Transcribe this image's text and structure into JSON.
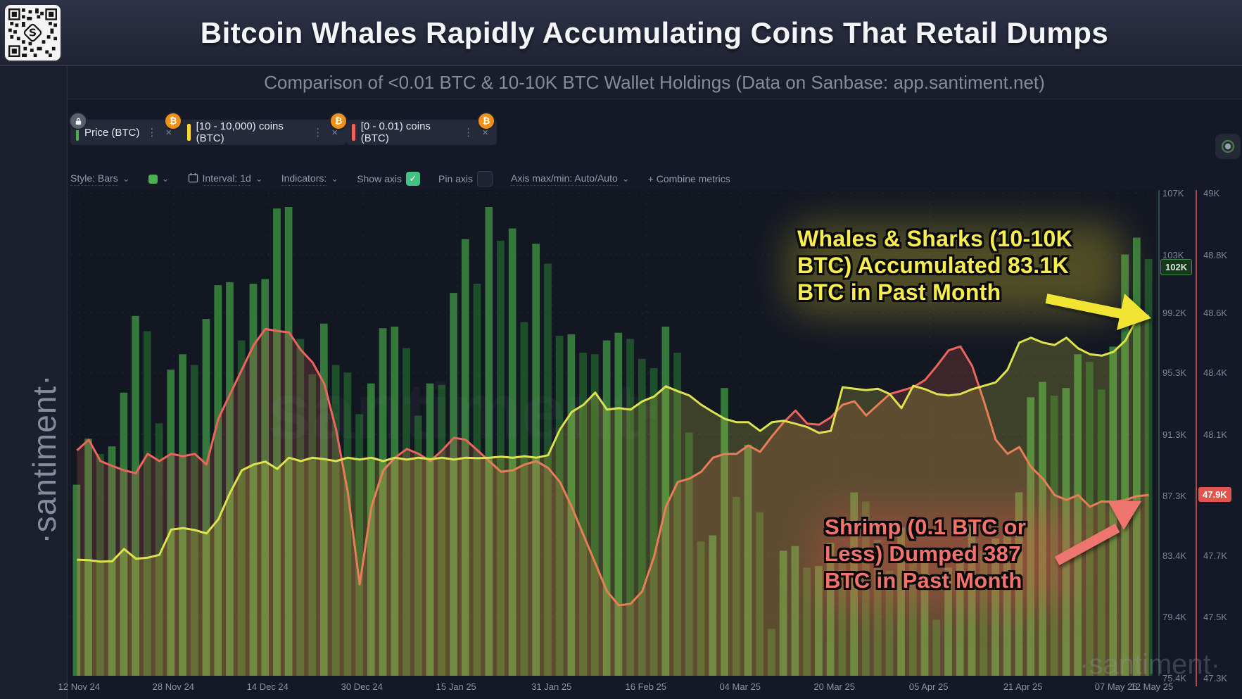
{
  "header": {
    "title": "Bitcoin Whales Rapidly Accumulating Coins That Retail Dumps",
    "subtitle": "Comparison of <0.01 BTC & 10-10K BTC Wallet Holdings (Data on Sanbase: app.santiment.net)"
  },
  "branding": {
    "sidebar_watermark": "·santiment·",
    "center_watermark": "santiment·",
    "corner_watermark": "·santiment·",
    "qr_icon": "qr-code-santiment"
  },
  "metric_tabs": [
    {
      "label": "Price (BTC)",
      "color": "#4caf50",
      "lock_icon": "lock-icon",
      "asset_badge": "₿",
      "menu": "⋮",
      "close": "×"
    },
    {
      "label": "[10 - 10,000) coins (BTC)",
      "color": "#ffd836",
      "asset_badge": "₿",
      "menu": "⋮",
      "close": "×"
    },
    {
      "label": "[0 - 0.01) coins (BTC)",
      "color": "#f0635a",
      "asset_badge": "₿",
      "menu": "⋮",
      "close": "×"
    }
  ],
  "toolbar": {
    "style_label": "Style: Bars",
    "swatch_color": "#4caf50",
    "interval_label": "Interval: 1d",
    "indicators_label": "Indicators:",
    "show_axis_label": "Show axis",
    "show_axis_checked": true,
    "show_axis_check": "✓",
    "pin_axis_label": "Pin axis",
    "pin_axis_checked": false,
    "axis_maxmin_label": "Axis max/min: Auto/Auto",
    "combine_label": "+  Combine metrics",
    "caret": "⌄"
  },
  "annotations": {
    "whales": {
      "text": "Whales & Sharks (10-10K\nBTC) Accumulated 83.1K\nBTC in Past Month",
      "color": "#f8ed4e"
    },
    "shrimp": {
      "text": "Shrimp (0.1 BTC or\nLess) Dumped 387\nBTC in Past Month",
      "color": "#f3736c"
    }
  },
  "axes": {
    "price_axis": {
      "ticks": [
        "107K",
        "103K",
        "99.2K",
        "95.3K",
        "91.3K",
        "87.3K",
        "83.4K",
        "79.4K",
        "75.4K"
      ],
      "current_badge": {
        "label": "102K",
        "bg": "#17371f",
        "fg": "#d2ecd6"
      }
    },
    "secondary_axis": {
      "ticks": [
        "49K",
        "48.8K",
        "48.6K",
        "48.4K",
        "48.1K",
        "47.7K",
        "47.5K",
        "47.3K"
      ],
      "tick_rows": [
        0,
        1,
        2,
        3,
        4,
        6,
        7,
        8
      ],
      "current_badge": {
        "label": "47.9K",
        "bg": "#e4544e",
        "fg": "#ffffff"
      },
      "axis_color": "#cc524c"
    },
    "x_axis": {
      "labels": [
        "12 Nov 24",
        "28 Nov 24",
        "14 Dec 24",
        "30 Dec 24",
        "15 Jan 25",
        "31 Jan 25",
        "16 Feb 25",
        "04 Mar 25",
        "20 Mar 25",
        "05 Apr 25",
        "21 Apr 25",
        "07 May 25",
        "12 May 25"
      ]
    }
  },
  "chart_data": {
    "type": "bar",
    "note": "Price rendered as daily green bars on left axis (K USD); the two wallet-holdings metrics are lines on hidden axes, values given as percent of plot height (0 = bottom, 100 = top).",
    "x_start": "12 Nov 24",
    "x_end": "12 May 25",
    "left_axis_range": [
      75.4,
      107
    ],
    "left_axis_values": [
      107,
      103,
      99.2,
      95.3,
      91.3,
      87.3,
      83.4,
      79.4,
      75.4
    ],
    "secondary_axis_range": [
      47.3,
      49
    ],
    "grid": true,
    "series": [
      {
        "name": "Price (BTC)",
        "type": "bar",
        "axis": "left",
        "unit": "K USD",
        "color_up": "#37813f",
        "color_down": "#20552d",
        "values": [
          88,
          91,
          90,
          90.5,
          94,
          99,
          98,
          92,
          95.5,
          96.5,
          95.8,
          98.8,
          101,
          101.2,
          97.4,
          101.1,
          101.4,
          106,
          106.1,
          97.5,
          95.2,
          98.5,
          95.8,
          95.3,
          92.6,
          94.6,
          98.2,
          98.3,
          96.9,
          92.5,
          94.6,
          94.5,
          100.5,
          104,
          101.1,
          106.1,
          103.9,
          104.7,
          98.6,
          103.7,
          102.4,
          97.7,
          97.8,
          96.6,
          96.5,
          97.4,
          97.9,
          97.5,
          96.2,
          95.6,
          98.3,
          96.6,
          91.4,
          84.3,
          84.7,
          94.3,
          87.2,
          90.6,
          86.2,
          78.6,
          83.7,
          84,
          82.6,
          82.7,
          84.2,
          83.8,
          87.5,
          86.9,
          84.4,
          82.4,
          85.2,
          83.2,
          83.5,
          79.2,
          82.6,
          83.7,
          85.3,
          83.7,
          84.5,
          85.2,
          87.5,
          93.7,
          94.7,
          93.8,
          94.3,
          96.5,
          96,
          94.2,
          97,
          103,
          104.1,
          102.7
        ]
      },
      {
        "name": "[10 - 10,000) coins (BTC)",
        "type": "line",
        "axis": "hidden",
        "unit": "relative %",
        "color": "#dde24e",
        "fill": "rgba(215,220,70,0.22)",
        "values": [
          23.9,
          23.8,
          23.5,
          23.6,
          26.1,
          24.1,
          24.3,
          24.9,
          30.1,
          30.4,
          30,
          29.3,
          32.2,
          37.7,
          42.3,
          43.5,
          44.1,
          42.6,
          44.9,
          44.2,
          44.9,
          44.6,
          44.2,
          44.9,
          44.5,
          44.9,
          44.2,
          44.9,
          44.5,
          44.9,
          44.6,
          44.9,
          44.5,
          44.9,
          44.8,
          44.9,
          45.1,
          44.9,
          45.2,
          44.9,
          45.4,
          50.7,
          54.3,
          55.8,
          58.3,
          54.8,
          55.1,
          54.8,
          56.5,
          57.5,
          59.6,
          58.6,
          57.7,
          55.8,
          54.3,
          52.9,
          52.2,
          52.2,
          50.4,
          52.2,
          52.5,
          51.9,
          51.2,
          50,
          50.4,
          59.4,
          59.1,
          58.8,
          59.1,
          58,
          55.1,
          59.7,
          59,
          58,
          57.7,
          58,
          59,
          59.7,
          60.4,
          63,
          68.6,
          69.6,
          68.6,
          68.1,
          69.6,
          67.4,
          66.2,
          65.9,
          66.7,
          69,
          73.6,
          74.2
        ]
      },
      {
        "name": "[0 - 0.01) coins (BTC)",
        "type": "line",
        "axis": "hidden",
        "unit": "relative %",
        "color": "#ec655d",
        "fill": "rgba(230,95,85,0.20)",
        "values": [
          46.4,
          48.6,
          44.2,
          43.2,
          42.3,
          41.7,
          45.7,
          44.2,
          45.7,
          45.2,
          45.7,
          43.5,
          52.9,
          58,
          63,
          68.1,
          71.4,
          71,
          70.7,
          67.1,
          64.5,
          60.1,
          50.7,
          37.7,
          18.8,
          34.8,
          42.3,
          44.9,
          46.7,
          45.7,
          44.2,
          46.4,
          49,
          48.6,
          46.4,
          44.2,
          42,
          42.3,
          43.5,
          44.2,
          42.8,
          39.9,
          34.8,
          29,
          23.2,
          17.4,
          14.5,
          14.8,
          17.4,
          24.6,
          34.8,
          39.9,
          40.6,
          42,
          44.9,
          45.7,
          45.7,
          47.4,
          46.1,
          49.3,
          52.2,
          54.6,
          51.9,
          51.7,
          53.2,
          55.8,
          56.5,
          53.6,
          55.8,
          58,
          58.7,
          59.4,
          60.9,
          63.8,
          67,
          67.8,
          63.8,
          56.5,
          48.6,
          45.7,
          47.1,
          43,
          40.6,
          37.2,
          36.2,
          37.2,
          34.8,
          35.9,
          35.8,
          36.2,
          37,
          37.2
        ]
      }
    ],
    "x_labels": [
      "12 Nov 24",
      "28 Nov 24",
      "14 Dec 24",
      "30 Dec 24",
      "15 Jan 25",
      "31 Jan 25",
      "16 Feb 25",
      "04 Mar 25",
      "20 Mar 25",
      "05 Apr 25",
      "21 Apr 25",
      "07 May 25",
      "12 May 25"
    ],
    "annotations": [
      {
        "text": "Whales & Sharks (10-10K BTC) Accumulated 83.1K BTC in Past Month",
        "series": "[10 - 10,000) coins (BTC)"
      },
      {
        "text": "Shrimp (0.1 BTC or Less) Dumped 387 BTC in Past Month",
        "series": "[0 - 0.01) coins (BTC)"
      }
    ]
  }
}
